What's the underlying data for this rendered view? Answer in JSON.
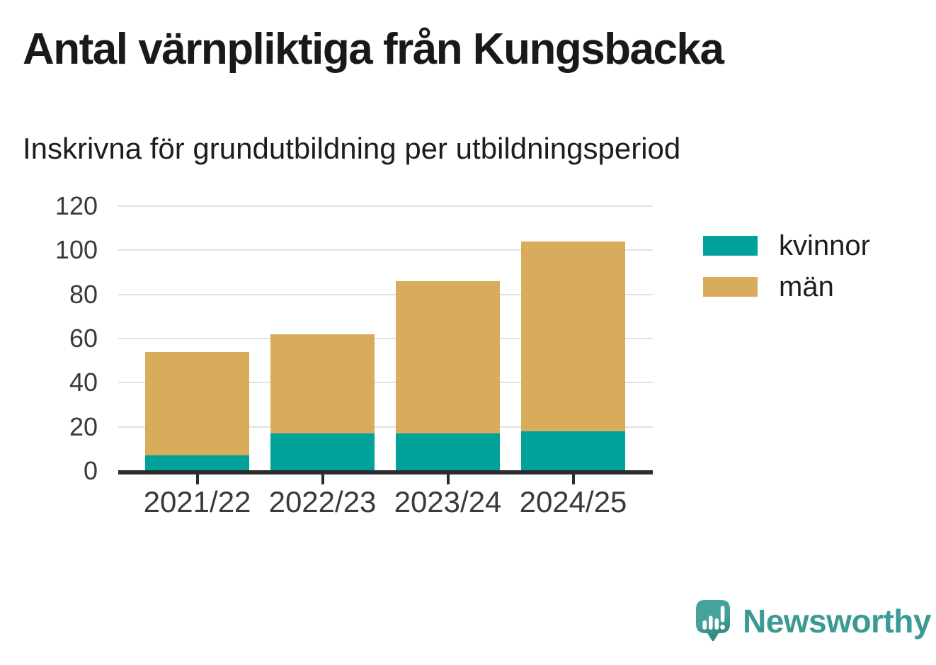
{
  "title": "Antal värnpliktiga från Kungsbacka",
  "subtitle": "Inskrivna för grundutbildning per utbildningsperiod",
  "chart_data": {
    "type": "bar",
    "stacked": true,
    "title": "Antal värnpliktiga från Kungsbacka",
    "subtitle": "Inskrivna för grundutbildning per utbildningsperiod",
    "categories": [
      "2021/22",
      "2022/23",
      "2023/24",
      "2024/25"
    ],
    "series": [
      {
        "name": "kvinnor",
        "color": "#00a29a",
        "values": [
          7,
          17,
          17,
          18
        ]
      },
      {
        "name": "män",
        "color": "#d9ac5c",
        "values": [
          47,
          45,
          69,
          86
        ]
      }
    ],
    "stack_totals": [
      54,
      62,
      86,
      104
    ],
    "ylim": [
      0,
      120
    ],
    "yticks": [
      0,
      20,
      40,
      60,
      80,
      100,
      120
    ],
    "xlabel": "",
    "ylabel": "",
    "grid": "horizontal",
    "legend_position": "right",
    "axis_color": "#2d2d2d",
    "gridline_color": "#e1e1e1"
  },
  "branding": {
    "logo_text": "Newsworthy",
    "logo_color": "#3b9a93",
    "logo_icon": "speech-bubble-with-bar-chart-and-exclamation"
  }
}
